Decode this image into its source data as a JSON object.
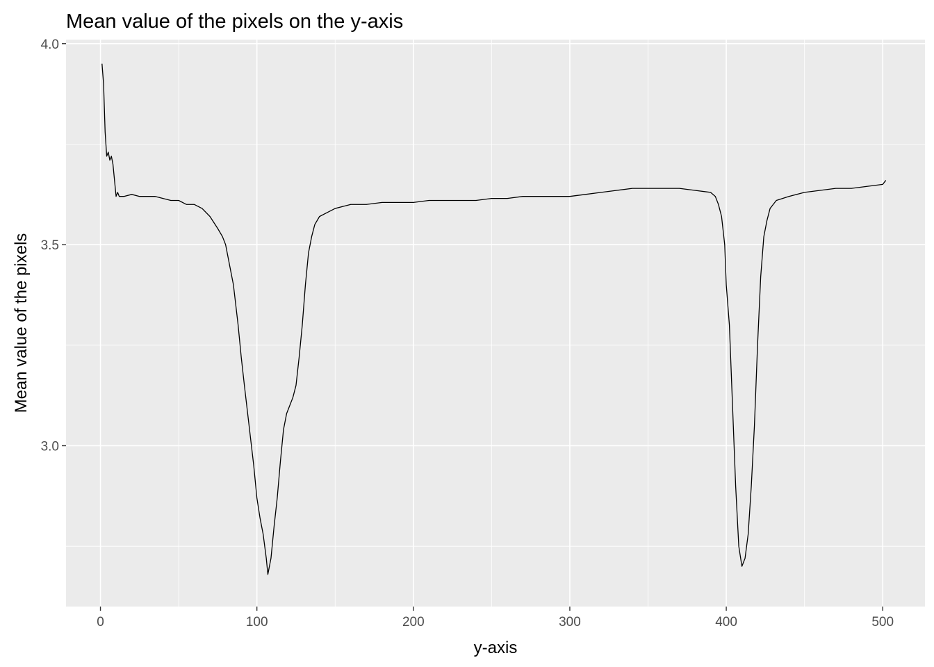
{
  "chart_data": {
    "type": "line",
    "title": "Mean value of the pixels on the y-axis",
    "xlabel": "y-axis",
    "ylabel": "Mean value of the pixels",
    "xlim": [
      -22,
      527
    ],
    "ylim": [
      2.6,
      4.01
    ],
    "x_ticks": [
      0,
      100,
      200,
      300,
      400,
      500
    ],
    "x_tick_labels": [
      "0",
      "100",
      "200",
      "300",
      "400",
      "500"
    ],
    "y_ticks": [
      3.0,
      3.5,
      4.0
    ],
    "y_tick_labels": [
      "3.0",
      "3.5",
      "4.0"
    ],
    "grid": true,
    "legend": "none",
    "series": [
      {
        "color": "#000000",
        "x": [
          1,
          2,
          3,
          4,
          5,
          6,
          7,
          8,
          9,
          10,
          11,
          12,
          15,
          20,
          25,
          30,
          35,
          40,
          45,
          50,
          55,
          60,
          65,
          70,
          75,
          78,
          80,
          82,
          85,
          88,
          90,
          92,
          95,
          98,
          100,
          102,
          104,
          106,
          107,
          109,
          111,
          113,
          115,
          117,
          119,
          121,
          123,
          125,
          127,
          129,
          131,
          133,
          135,
          137,
          140,
          145,
          150,
          155,
          160,
          170,
          180,
          190,
          200,
          210,
          220,
          230,
          240,
          250,
          260,
          270,
          280,
          290,
          300,
          310,
          320,
          330,
          340,
          350,
          360,
          370,
          380,
          390,
          393,
          395,
          397,
          399,
          400,
          402,
          404,
          406,
          408,
          410,
          412,
          414,
          416,
          418,
          420,
          422,
          424,
          426,
          428,
          430,
          432,
          440,
          450,
          460,
          470,
          480,
          490,
          500,
          502
        ],
        "y": [
          3.95,
          3.9,
          3.78,
          3.72,
          3.73,
          3.71,
          3.72,
          3.7,
          3.66,
          3.62,
          3.63,
          3.62,
          3.62,
          3.625,
          3.62,
          3.62,
          3.62,
          3.615,
          3.61,
          3.61,
          3.6,
          3.6,
          3.59,
          3.57,
          3.54,
          3.52,
          3.5,
          3.46,
          3.4,
          3.3,
          3.22,
          3.15,
          3.05,
          2.95,
          2.87,
          2.82,
          2.78,
          2.72,
          2.68,
          2.72,
          2.8,
          2.87,
          2.96,
          3.04,
          3.08,
          3.1,
          3.12,
          3.15,
          3.22,
          3.3,
          3.4,
          3.48,
          3.52,
          3.55,
          3.57,
          3.58,
          3.59,
          3.595,
          3.6,
          3.6,
          3.605,
          3.605,
          3.605,
          3.61,
          3.61,
          3.61,
          3.61,
          3.615,
          3.615,
          3.62,
          3.62,
          3.62,
          3.62,
          3.625,
          3.63,
          3.635,
          3.64,
          3.64,
          3.64,
          3.64,
          3.635,
          3.63,
          3.62,
          3.6,
          3.57,
          3.5,
          3.4,
          3.3,
          3.1,
          2.9,
          2.75,
          2.7,
          2.72,
          2.78,
          2.9,
          3.05,
          3.25,
          3.42,
          3.52,
          3.56,
          3.59,
          3.6,
          3.61,
          3.62,
          3.63,
          3.635,
          3.64,
          3.64,
          3.645,
          3.65,
          3.66
        ]
      }
    ]
  }
}
